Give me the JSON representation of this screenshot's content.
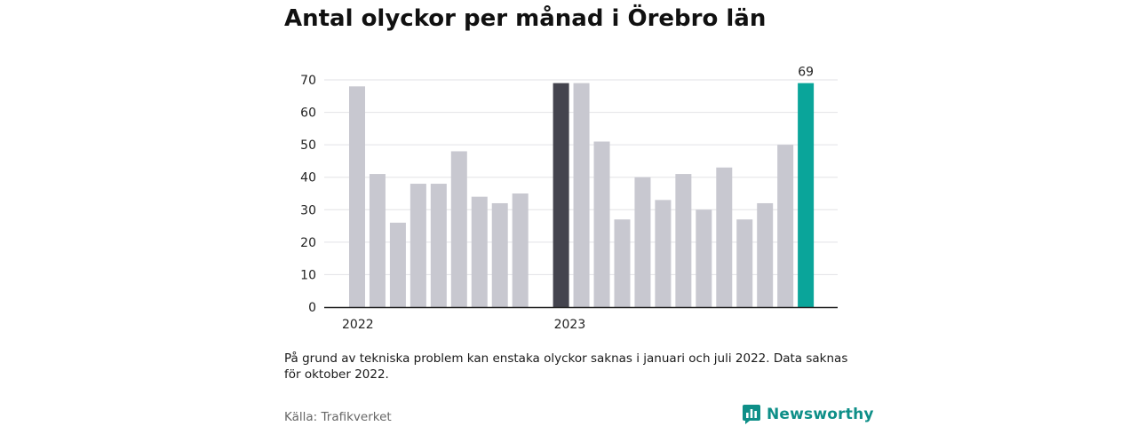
{
  "title": "Antal olyckor per månad i Örebro län",
  "note": "På grund av tekniska problem kan enstaka olyckor saknas i januari och juli 2022. Data saknas för oktober 2022.",
  "source": "Källa: Trafikverket",
  "brand": {
    "name": "Newsworthy",
    "icon": "bar-chart-logo-icon"
  },
  "colors": {
    "bar_default": "#c8c8d0",
    "bar_reference": "#44444e",
    "bar_highlight": "#0aa59a",
    "axis": "#222222",
    "grid": "#e2e2e6",
    "brand": "#0e8f88"
  },
  "chart_data": {
    "type": "bar",
    "title": "Antal olyckor per månad i Örebro län",
    "xlabel": "",
    "ylabel": "",
    "ylim": [
      0,
      70
    ],
    "yticks": [
      0,
      10,
      20,
      30,
      40,
      50,
      60,
      70
    ],
    "grid": true,
    "year_labels": [
      {
        "label": "2022",
        "index": 0
      },
      {
        "label": "2023",
        "index": 10
      }
    ],
    "bars": [
      {
        "month": "2022-01",
        "value": 68
      },
      {
        "month": "2022-02",
        "value": 41
      },
      {
        "month": "2022-03",
        "value": 26
      },
      {
        "month": "2022-04",
        "value": 38
      },
      {
        "month": "2022-05",
        "value": 38
      },
      {
        "month": "2022-06",
        "value": 48
      },
      {
        "month": "2022-07",
        "value": 34
      },
      {
        "month": "2022-08",
        "value": 32
      },
      {
        "month": "2022-09",
        "value": 35
      },
      {
        "month": "2022-10",
        "value": null
      },
      {
        "month": "2022-11",
        "value": 69,
        "style": "reference"
      },
      {
        "month": "2022-12",
        "value": 69
      },
      {
        "month": "2023-01",
        "value": 51
      },
      {
        "month": "2023-02",
        "value": 27
      },
      {
        "month": "2023-03",
        "value": 40
      },
      {
        "month": "2023-04",
        "value": 33
      },
      {
        "month": "2023-05",
        "value": 41
      },
      {
        "month": "2023-06",
        "value": 30
      },
      {
        "month": "2023-07",
        "value": 43
      },
      {
        "month": "2023-08",
        "value": 27
      },
      {
        "month": "2023-09",
        "value": 32
      },
      {
        "month": "2023-10",
        "value": 50
      },
      {
        "month": "2023-11",
        "value": 69,
        "style": "highlight",
        "label": "69"
      }
    ]
  }
}
